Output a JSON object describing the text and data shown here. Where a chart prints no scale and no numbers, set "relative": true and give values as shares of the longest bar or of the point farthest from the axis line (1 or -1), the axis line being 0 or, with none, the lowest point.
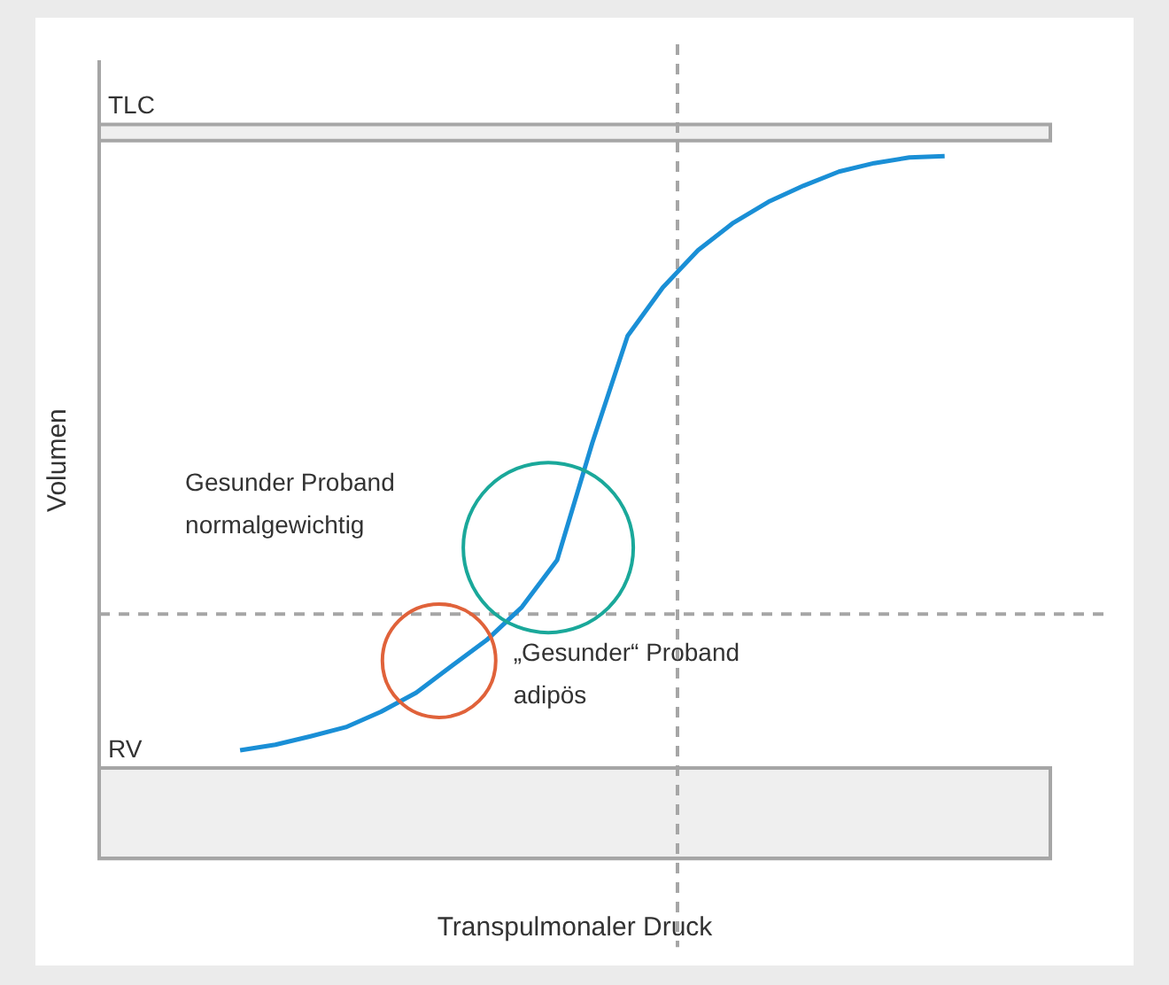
{
  "chart_data": {
    "type": "line",
    "relative": true,
    "xlabel": "Transpulmonaler Druck",
    "ylabel": "Volumen",
    "grid": false,
    "legend": false,
    "marker": "none",
    "line_style": "solid",
    "categories": [
      null,
      null,
      null,
      null,
      null,
      null,
      null,
      null,
      null,
      null,
      null,
      null,
      null,
      null,
      null,
      null,
      null,
      null,
      null,
      null,
      null,
      null,
      null,
      null,
      null,
      null,
      null,
      null
    ],
    "series": [
      {
        "color": "#1a8fd6",
        "values": [
          null,
          null,
          null,
          null,
          0.154,
          0.162,
          0.174,
          0.187,
          0.209,
          0.236,
          0.274,
          0.311,
          0.358,
          0.425,
          0.592,
          0.744,
          0.813,
          0.866,
          0.905,
          0.935,
          0.958,
          0.978,
          0.99,
          0.998,
          1,
          null,
          null,
          null
        ]
      }
    ],
    "ref_lines": [
      {
        "axis": "y",
        "value": 0.348,
        "color": "#a6a6a6",
        "line_style": "dashed"
      }
    ],
    "bands": [
      {
        "axis": "y",
        "from": 1.022,
        "to": 1.045,
        "label": "TLC",
        "color": "#a6a6a6"
      },
      {
        "axis": "y",
        "from": 0,
        "to": 0.129,
        "label": "RV",
        "color": "#a6a6a6"
      }
    ],
    "annotations": [
      "Gesunder Proband\nnormalgewichtig",
      "„Gesunder“ Proband\nadipös"
    ]
  }
}
